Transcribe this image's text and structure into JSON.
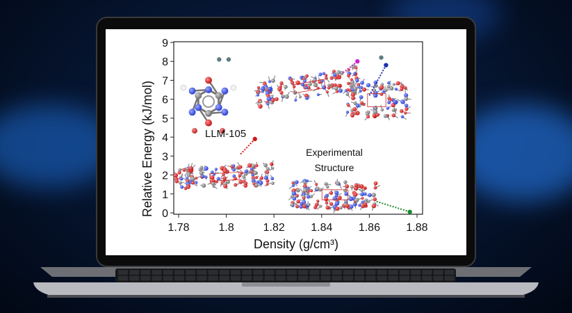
{
  "chart_data": {
    "type": "scatter",
    "xlabel": "Density (g/cm³)",
    "ylabel": "Relative Energy (kJ/mol)",
    "xlim": [
      1.78,
      1.88
    ],
    "ylim": [
      0,
      9
    ],
    "x_ticks": [
      "1.78",
      "1.8",
      "1.82",
      "1.84",
      "1.86",
      "1.88"
    ],
    "y_ticks": [
      "0",
      "1",
      "2",
      "3",
      "4",
      "5",
      "6",
      "7",
      "8",
      "9"
    ],
    "points": [
      {
        "x": 1.855,
        "y": 8.0,
        "color": "#cc22cc"
      },
      {
        "x": 1.867,
        "y": 7.8,
        "color": "#1a2fb0"
      },
      {
        "x": 1.812,
        "y": 3.9,
        "color": "#cc1a1a"
      },
      {
        "x": 1.877,
        "y": 0.05,
        "color": "#1a8a2a"
      },
      {
        "x": 1.797,
        "y": 8.1,
        "color": "#5f7b85"
      },
      {
        "x": 1.801,
        "y": 8.1,
        "color": "#5f7b85"
      },
      {
        "x": 1.865,
        "y": 8.2,
        "color": "#5f7b85"
      }
    ],
    "annotations": {
      "molecule_label": "LLM-105",
      "experimental_line1": "Experimental",
      "experimental_line2": "Structure"
    }
  }
}
